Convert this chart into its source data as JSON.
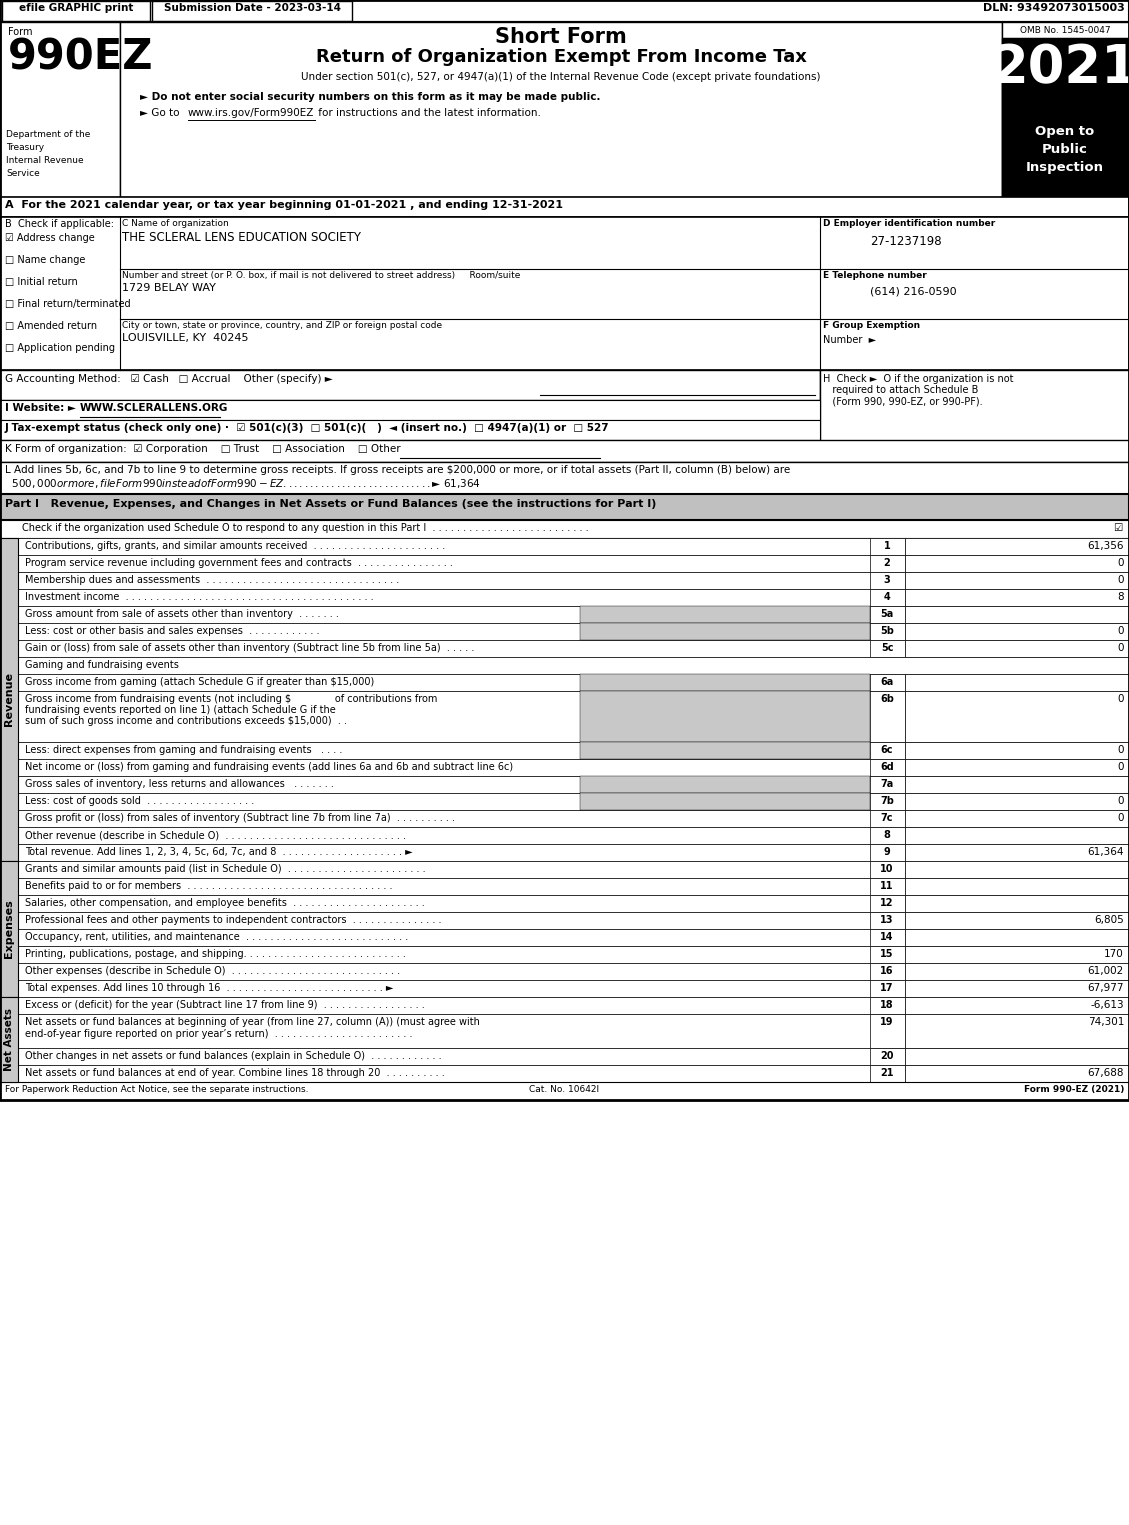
{
  "efile_text": "efile GRAPHIC print",
  "submission_date": "Submission Date - 2023-03-14",
  "dln": "DLN: 93492073015003",
  "form_number": "990EZ",
  "short_form_title": "Short Form",
  "main_title": "Return of Organization Exempt From Income Tax",
  "under_section": "Under section 501(c), 527, or 4947(a)(1) of the Internal Revenue Code (except private foundations)",
  "bullet1": "► Do not enter social security numbers on this form as it may be made public.",
  "bullet2_pre": "► Go to ",
  "bullet2_link": "www.irs.gov/Form990EZ",
  "bullet2_post": " for instructions and the latest information.",
  "omb": "OMB No. 1545-0047",
  "year": "2021",
  "open_to_line1": "Open to",
  "open_to_line2": "Public",
  "open_to_line3": "Inspection",
  "dept_lines": [
    "Department of the",
    "Treasury",
    "Internal Revenue",
    "Service"
  ],
  "form_label": "Form",
  "line_A": "A  For the 2021 calendar year, or tax year beginning 01-01-2021 , and ending 12-31-2021",
  "B_label": "B  Check if applicable:",
  "checkboxes_B": [
    {
      "checked": true,
      "label": "Address change"
    },
    {
      "checked": false,
      "label": "Name change"
    },
    {
      "checked": false,
      "label": "Initial return"
    },
    {
      "checked": false,
      "label": "Final return/terminated"
    },
    {
      "checked": false,
      "label": "Amended return"
    },
    {
      "checked": false,
      "label": "Application pending"
    }
  ],
  "C_label": "C Name of organization",
  "org_name": "THE SCLERAL LENS EDUCATION SOCIETY",
  "street_label": "Number and street (or P. O. box, if mail is not delivered to street address)     Room/suite",
  "street": "1729 BELAY WAY",
  "city_label": "City or town, state or province, country, and ZIP or foreign postal code",
  "city": "LOUISVILLE, KY  40245",
  "D_label": "D Employer identification number",
  "ein": "27-1237198",
  "E_label": "E Telephone number",
  "phone": "(614) 216-0590",
  "F_label": "F Group Exemption",
  "F_label2": "Number  ►",
  "G_text_parts": [
    "G Accounting Method:   ",
    "☑",
    "Cash   ",
    "□",
    "Accrual    Other (specify) ►"
  ],
  "G_underline": "____________________________",
  "H_line1": "H  Check ►  O if the organization is not",
  "H_line2": "required to attach Schedule B",
  "H_line3": "(Form 990, 990-EZ, or 990-PF).",
  "I_label": "I Website: ►",
  "I_website": "WWW.SCLERALLENS.ORG",
  "J_text": "J Tax-exempt status (check only one) ·  ☑ 501(c)(3)  □ 501(c)(   )  ◄ (insert no.)  □ 4947(a)(1) or  □ 527",
  "K_text": "K Form of organization:  ☑ Corporation    □ Trust    □ Association    □ Other",
  "L_line1": "L Add lines 5b, 6c, and 7b to line 9 to determine gross receipts. If gross receipts are $200,000 or more, or if total assets (Part II, column (B) below) are",
  "L_line2": "  $500,000 or more, file Form 990 instead of Form 990-EZ . . . . . . . . . . . . . . . . . . . . . . . . . . . . ► $ 61,364",
  "part1_header": "Part I   Revenue, Expenses, and Changes in Net Assets or Fund Balances (see the instructions for Part I)",
  "part1_check": "Check if the organization used Schedule O to respond to any question in this Part I  . . . . . . . . . . . . . . . . . . . . . . . . . .",
  "revenue_rows": [
    {
      "num": "1",
      "label": "Contributions, gifts, grants, and similar amounts received  . . . . . . . . . . . . . . . . . . . . . .",
      "line": "1",
      "value": "61,356",
      "shaded": false,
      "indent": 1
    },
    {
      "num": "2",
      "label": "Program service revenue including government fees and contracts  . . . . . . . . . . . . . . . .",
      "line": "2",
      "value": "0",
      "shaded": false,
      "indent": 1
    },
    {
      "num": "3",
      "label": "Membership dues and assessments  . . . . . . . . . . . . . . . . . . . . . . . . . . . . . . . .",
      "line": "3",
      "value": "0",
      "shaded": false,
      "indent": 1
    },
    {
      "num": "4",
      "label": "Investment income  . . . . . . . . . . . . . . . . . . . . . . . . . . . . . . . . . . . . . . . . .",
      "line": "4",
      "value": "8",
      "shaded": false,
      "indent": 1
    },
    {
      "num": "5a",
      "label": "Gross amount from sale of assets other than inventory  . . . . . . .",
      "line": "5a",
      "value": "",
      "shaded": true,
      "indent": 1
    },
    {
      "num": "b",
      "label": "Less: cost or other basis and sales expenses  . . . . . . . . . . . .",
      "line": "5b",
      "value": "0",
      "shaded": true,
      "indent": 1
    },
    {
      "num": "c",
      "label": "Gain or (loss) from sale of assets other than inventory (Subtract line 5b from line 5a)  . . . . .",
      "line": "5c",
      "value": "0",
      "shaded": false,
      "indent": 1
    },
    {
      "num": "6",
      "label": "Gaming and fundraising events",
      "line": "",
      "value": "",
      "shaded": false,
      "indent": 1
    },
    {
      "num": "a",
      "label": "Gross income from gaming (attach Schedule G if greater than $15,000)",
      "line": "6a",
      "value": "",
      "shaded": true,
      "indent": 2
    },
    {
      "num": "b",
      "label": "Gross income from fundraising events (not including $              of contributions from\n   fundraising events reported on line 1) (attach Schedule G if the\n   sum of such gross income and contributions exceeds $15,000)  . .",
      "line": "6b",
      "value": "0",
      "shaded": true,
      "indent": 2,
      "multiline": 3
    },
    {
      "num": "c",
      "label": "Less: direct expenses from gaming and fundraising events   . . . .",
      "line": "6c",
      "value": "0",
      "shaded": true,
      "indent": 2
    },
    {
      "num": "d",
      "label": "Net income or (loss) from gaming and fundraising events (add lines 6a and 6b and subtract line 6c)",
      "line": "6d",
      "value": "0",
      "shaded": false,
      "indent": 1
    },
    {
      "num": "7a",
      "label": "Gross sales of inventory, less returns and allowances   . . . . . . .",
      "line": "7a",
      "value": "",
      "shaded": true,
      "indent": 1
    },
    {
      "num": "b",
      "label": "Less: cost of goods sold  . . . . . . . . . . . . . . . . . .",
      "line": "7b",
      "value": "0",
      "shaded": true,
      "indent": 1
    },
    {
      "num": "c",
      "label": "Gross profit or (loss) from sales of inventory (Subtract line 7b from line 7a)  . . . . . . . . . .",
      "line": "7c",
      "value": "0",
      "shaded": false,
      "indent": 1
    },
    {
      "num": "8",
      "label": "Other revenue (describe in Schedule O)  . . . . . . . . . . . . . . . . . . . . . . . . . . . . . .",
      "line": "8",
      "value": "",
      "shaded": false,
      "indent": 1
    },
    {
      "num": "9",
      "label": "Total revenue. Add lines 1, 2, 3, 4, 5c, 6d, 7c, and 8  . . . . . . . . . . . . . . . . . . . . ►",
      "line": "9",
      "value": "61,364",
      "shaded": false,
      "indent": 1
    }
  ],
  "expense_rows": [
    {
      "num": "10",
      "label": "Grants and similar amounts paid (list in Schedule O)  . . . . . . . . . . . . . . . . . . . . . . .",
      "line": "10",
      "value": ""
    },
    {
      "num": "11",
      "label": "Benefits paid to or for members  . . . . . . . . . . . . . . . . . . . . . . . . . . . . . . . . . .",
      "line": "11",
      "value": ""
    },
    {
      "num": "12",
      "label": "Salaries, other compensation, and employee benefits  . . . . . . . . . . . . . . . . . . . . . .",
      "line": "12",
      "value": ""
    },
    {
      "num": "13",
      "label": "Professional fees and other payments to independent contractors  . . . . . . . . . . . . . . .",
      "line": "13",
      "value": "6,805"
    },
    {
      "num": "14",
      "label": "Occupancy, rent, utilities, and maintenance  . . . . . . . . . . . . . . . . . . . . . . . . . . .",
      "line": "14",
      "value": ""
    },
    {
      "num": "15",
      "label": "Printing, publications, postage, and shipping. . . . . . . . . . . . . . . . . . . . . . . . . . .",
      "line": "15",
      "value": "170"
    },
    {
      "num": "16",
      "label": "Other expenses (describe in Schedule O)  . . . . . . . . . . . . . . . . . . . . . . . . . . . .",
      "line": "16",
      "value": "61,002"
    },
    {
      "num": "17",
      "label": "Total expenses. Add lines 10 through 16  . . . . . . . . . . . . . . . . . . . . . . . . . . ►",
      "line": "17",
      "value": "67,977"
    }
  ],
  "net_rows": [
    {
      "num": "18",
      "label": "Excess or (deficit) for the year (Subtract line 17 from line 9)  . . . . . . . . . . . . . . . . .",
      "line": "18",
      "value": "-6,613",
      "multiline": 1
    },
    {
      "num": "19",
      "label": "Net assets or fund balances at beginning of year (from line 27, column (A)) (must agree with\n   end-of-year figure reported on prior year’s return)  . . . . . . . . . . . . . . . . . . . . . . .",
      "line": "19",
      "value": "74,301",
      "multiline": 2
    },
    {
      "num": "20",
      "label": "Other changes in net assets or fund balances (explain in Schedule O)  . . . . . . . . . . . .",
      "line": "20",
      "value": "",
      "multiline": 1
    },
    {
      "num": "21",
      "label": "Net assets or fund balances at end of year. Combine lines 18 through 20  . . . . . . . . . .",
      "line": "21",
      "value": "67,688",
      "multiline": 1
    }
  ],
  "revenue_label": "Revenue",
  "expenses_label": "Expenses",
  "net_assets_label": "Net Assets",
  "footer_left": "For Paperwork Reduction Act Notice, see the separate instructions.",
  "footer_cat": "Cat. No. 10642I",
  "footer_right": "Form 990-EZ (2021)"
}
